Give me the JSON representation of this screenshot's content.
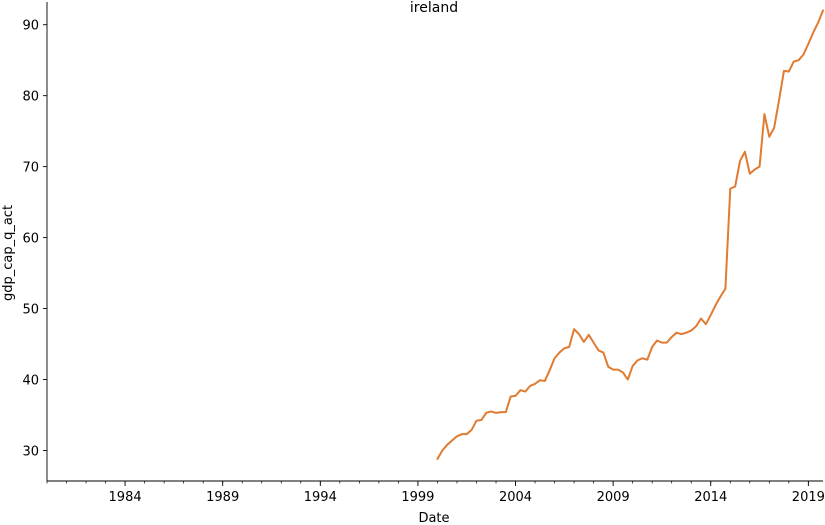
{
  "chart_data": {
    "type": "line",
    "title": "ireland",
    "xlabel": "Date",
    "ylabel": "gdp_cap_q_act",
    "xlim": [
      "1980-01-01",
      "2019-10-01"
    ],
    "ylim": [
      25.7,
      93.2
    ],
    "x_tick_labels": [
      "1984",
      "1989",
      "1994",
      "1999",
      "2004",
      "2009",
      "2014",
      "2019"
    ],
    "y_tick_labels": [
      "30",
      "40",
      "50",
      "60",
      "70",
      "80",
      "90"
    ],
    "grid": false,
    "colors": {
      "line": "#e07b32",
      "axes": "#000000"
    },
    "series": [
      {
        "x": [
          "2000-01-01",
          "2000-04-01",
          "2000-07-01",
          "2000-10-01",
          "2001-01-01",
          "2001-04-01",
          "2001-07-01",
          "2001-10-01",
          "2002-01-01",
          "2002-04-01",
          "2002-07-01",
          "2002-10-01",
          "2003-01-01",
          "2003-04-01",
          "2003-07-01",
          "2003-10-01",
          "2004-01-01",
          "2004-04-01",
          "2004-07-01",
          "2004-10-01",
          "2005-01-01",
          "2005-04-01",
          "2005-07-01",
          "2005-10-01",
          "2006-01-01",
          "2006-04-01",
          "2006-07-01",
          "2006-10-01",
          "2007-01-01",
          "2007-04-01",
          "2007-07-01",
          "2007-10-01",
          "2008-01-01",
          "2008-04-01",
          "2008-07-01",
          "2008-10-01",
          "2009-01-01",
          "2009-04-01",
          "2009-07-01",
          "2009-10-01",
          "2010-01-01",
          "2010-04-01",
          "2010-07-01",
          "2010-10-01",
          "2011-01-01",
          "2011-04-01",
          "2011-07-01",
          "2011-10-01",
          "2012-01-01",
          "2012-04-01",
          "2012-07-01",
          "2012-10-01",
          "2013-01-01",
          "2013-04-01",
          "2013-07-01",
          "2013-10-01",
          "2014-01-01",
          "2014-04-01",
          "2014-07-01",
          "2014-10-01",
          "2015-01-01",
          "2015-04-01",
          "2015-07-01",
          "2015-10-01",
          "2016-01-01",
          "2016-04-01",
          "2016-07-01",
          "2016-10-01",
          "2017-01-01",
          "2017-04-01",
          "2017-07-01",
          "2017-10-01",
          "2018-01-01",
          "2018-04-01",
          "2018-07-01",
          "2018-10-01",
          "2019-01-01",
          "2019-04-01",
          "2019-07-01",
          "2019-10-01"
        ],
        "y": [
          28.8,
          30.0,
          30.8,
          31.4,
          32.0,
          32.3,
          32.3,
          32.9,
          34.2,
          34.3,
          35.3,
          35.5,
          35.3,
          35.4,
          35.4,
          37.6,
          37.7,
          38.5,
          38.3,
          39.1,
          39.4,
          39.9,
          39.8,
          41.3,
          43.0,
          43.8,
          44.4,
          44.6,
          47.1,
          46.4,
          45.3,
          46.3,
          45.2,
          44.1,
          43.8,
          41.8,
          41.4,
          41.4,
          41.0,
          40.0,
          41.9,
          42.7,
          43.0,
          42.8,
          44.6,
          45.5,
          45.2,
          45.2,
          46.0,
          46.6,
          46.4,
          46.6,
          46.9,
          47.5,
          48.6,
          47.8,
          49.1,
          50.5,
          51.7,
          52.8,
          66.9,
          67.2,
          70.8,
          72.1,
          69.0,
          69.6,
          70.0,
          77.4,
          74.2,
          75.5,
          79.4,
          83.5,
          83.4,
          84.8,
          85.0,
          85.8,
          87.3,
          88.9,
          90.3,
          92.0
        ]
      }
    ]
  }
}
